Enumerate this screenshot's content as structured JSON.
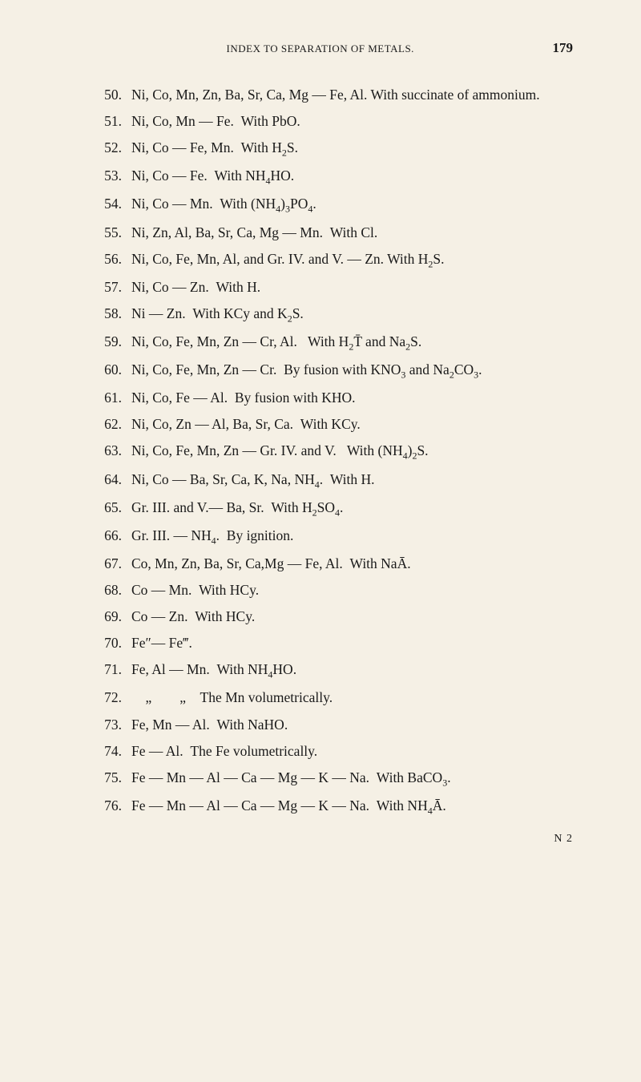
{
  "header": {
    "title": "INDEX TO SEPARATION OF METALS.",
    "page_number": "179"
  },
  "entries": [
    {
      "num": "50.",
      "html": "Ni, Co, Mn, Zn, Ba, Sr, Ca, Mg — Fe, Al. With succinate of ammonium."
    },
    {
      "num": "51.",
      "html": "Ni, Co, Mn — Fe.&nbsp;&nbsp;With PbO."
    },
    {
      "num": "52.",
      "html": "Ni, Co — Fe, Mn.&nbsp;&nbsp;With H<span class=\"sub\">2</span>S."
    },
    {
      "num": "53.",
      "html": "Ni, Co — Fe.&nbsp;&nbsp;With NH<span class=\"sub\">4</span>HO."
    },
    {
      "num": "54.",
      "html": "Ni, Co — Mn.&nbsp;&nbsp;With (NH<span class=\"sub\">4</span>)<span class=\"sub\">3</span>PO<span class=\"sub\">4</span>."
    },
    {
      "num": "55.",
      "html": "Ni, Zn, Al, Ba, Sr, Ca, Mg — Mn.&nbsp;&nbsp;With Cl."
    },
    {
      "num": "56.",
      "html": "Ni, Co, Fe, Mn, Al, and Gr. IV. and V. — Zn. With H<span class=\"sub\">2</span>S."
    },
    {
      "num": "57.",
      "html": "Ni, Co — Zn.&nbsp;&nbsp;With H."
    },
    {
      "num": "58.",
      "html": "Ni — Zn.&nbsp;&nbsp;With KCy and K<span class=\"sub\">2</span>S."
    },
    {
      "num": "59.",
      "html": "Ni, Co, Fe, Mn, Zn — Cr, Al.&nbsp;&nbsp;&nbsp;With H<span class=\"sub\">2</span>T̄ and Na<span class=\"sub\">2</span>S."
    },
    {
      "num": "60.",
      "html": "Ni, Co, Fe, Mn, Zn — Cr.&nbsp;&nbsp;By fusion with KNO<span class=\"sub\">3</span> and Na<span class=\"sub\">2</span>CO<span class=\"sub\">3</span>."
    },
    {
      "num": "61.",
      "html": "Ni, Co, Fe — Al.&nbsp;&nbsp;By fusion with KHO."
    },
    {
      "num": "62.",
      "html": "Ni, Co, Zn — Al, Ba, Sr, Ca.&nbsp;&nbsp;With KCy."
    },
    {
      "num": "63.",
      "html": "Ni, Co, Fe, Mn, Zn — Gr. IV. and V.&nbsp;&nbsp;&nbsp;With (NH<span class=\"sub\">4</span>)<span class=\"sub\">2</span>S."
    },
    {
      "num": "64.",
      "html": "Ni, Co — Ba, Sr, Ca, K, Na, NH<span class=\"sub\">4</span>.&nbsp;&nbsp;With H."
    },
    {
      "num": "65.",
      "html": "Gr. III. and V.— Ba, Sr.&nbsp;&nbsp;With H<span class=\"sub\">2</span>SO<span class=\"sub\">4</span>."
    },
    {
      "num": "66.",
      "html": "Gr. III. — NH<span class=\"sub\">4</span>.&nbsp;&nbsp;By ignition."
    },
    {
      "num": "67.",
      "html": "Co, Mn, Zn, Ba, Sr, Ca,Mg — Fe, Al.&nbsp;&nbsp;With NaĀ."
    },
    {
      "num": "68.",
      "html": "Co — Mn.&nbsp;&nbsp;With HCy."
    },
    {
      "num": "69.",
      "html": "Co — Zn.&nbsp;&nbsp;With HCy."
    },
    {
      "num": "70.",
      "html": "Fe″— Fe‴."
    },
    {
      "num": "71.",
      "html": "Fe, Al — Mn.&nbsp;&nbsp;With NH<span class=\"sub\">4</span>HO."
    },
    {
      "num": "72.",
      "html": "&nbsp;&nbsp;&nbsp;&nbsp;„&nbsp;&nbsp;&nbsp;&nbsp;&nbsp;&nbsp;&nbsp;&nbsp;„&nbsp;&nbsp;&nbsp;&nbsp;The Mn volumetrically."
    },
    {
      "num": "73.",
      "html": "Fe, Mn — Al.&nbsp;&nbsp;With NaHO."
    },
    {
      "num": "74.",
      "html": "Fe — Al.&nbsp;&nbsp;The Fe volumetrically."
    },
    {
      "num": "75.",
      "html": "Fe — Mn — Al — Ca — Mg — K — Na.&nbsp;&nbsp;With BaCO<span class=\"sub\">3</span>."
    },
    {
      "num": "76.",
      "html": "Fe — Mn — Al — Ca — Mg — K — Na.&nbsp;&nbsp;With NH<span class=\"sub\">4</span>Ā."
    }
  ],
  "footer": "N 2"
}
